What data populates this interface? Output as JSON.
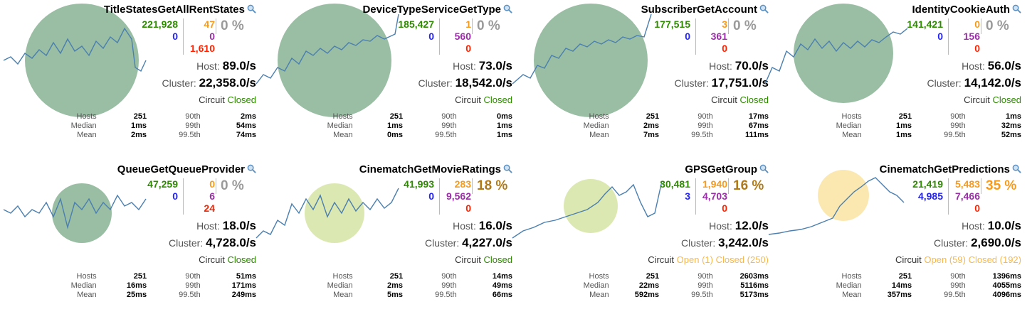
{
  "colors": {
    "green": "#2e8b00",
    "blue": "#2222ff",
    "purple": "#9b2ea8",
    "red": "#ff2200",
    "orange": "#f89a1a",
    "line": "#4a7fb0",
    "circleGreen": "#8fb79a",
    "circleLime": "#d8e6a8",
    "circleYellow": "#fbe6a8"
  },
  "cards": [
    {
      "name": "TitleStatesGetAllRentStates",
      "success": "221,928",
      "timeout": "0",
      "thread": "47",
      "sem": "0",
      "failure": "1,610",
      "err": "0 %",
      "errClass": "gray",
      "host": "89.0/s",
      "cluster": "22,358.0/s",
      "circuit": "Circuit",
      "circuitState": "Closed",
      "circuitClass": "cgreen",
      "hosts": "251",
      "median": "1ms",
      "mean": "2ms",
      "p90": "2ms",
      "p99": "54ms",
      "p995": "74ms",
      "circleColor": "#8fb79a"
    },
    {
      "name": "DeviceTypeServiceGetType",
      "success": "185,427",
      "timeout": "0",
      "thread": "1",
      "sem": "560",
      "failure": "0",
      "err": "0 %",
      "errClass": "gray",
      "host": "73.0/s",
      "cluster": "18,542.0/s",
      "circuit": "Circuit",
      "circuitState": "Closed",
      "circuitClass": "cgreen",
      "hosts": "251",
      "median": "1ms",
      "mean": "0ms",
      "p90": "0ms",
      "p99": "1ms",
      "p995": "1ms",
      "circleColor": "#8fb79a"
    },
    {
      "name": "SubscriberGetAccount",
      "success": "177,515",
      "timeout": "0",
      "thread": "3",
      "sem": "361",
      "failure": "0",
      "err": "0 %",
      "errClass": "gray",
      "host": "70.0/s",
      "cluster": "17,751.0/s",
      "circuit": "Circuit",
      "circuitState": "Closed",
      "circuitClass": "cgreen",
      "hosts": "251",
      "median": "2ms",
      "mean": "7ms",
      "p90": "17ms",
      "p99": "67ms",
      "p995": "111ms",
      "circleColor": "#8fb79a"
    },
    {
      "name": "IdentityCookieAuth",
      "success": "141,421",
      "timeout": "0",
      "thread": "0",
      "sem": "156",
      "failure": "0",
      "err": "0 %",
      "errClass": "gray",
      "host": "56.0/s",
      "cluster": "14,142.0/s",
      "circuit": "Circuit",
      "circuitState": "Closed",
      "circuitClass": "cgreen",
      "hosts": "251",
      "median": "1ms",
      "mean": "1ms",
      "p90": "1ms",
      "p99": "32ms",
      "p995": "52ms",
      "circleColor": "#8fb79a"
    },
    {
      "name": "QueueGetQueueProvider",
      "success": "47,259",
      "timeout": "0",
      "thread": "0",
      "sem": "6",
      "failure": "24",
      "err": "0 %",
      "errClass": "gray",
      "host": "18.0/s",
      "cluster": "4,728.0/s",
      "circuit": "Circuit",
      "circuitState": "Closed",
      "circuitClass": "cgreen",
      "hosts": "251",
      "median": "16ms",
      "mean": "25ms",
      "p90": "51ms",
      "p99": "171ms",
      "p995": "249ms",
      "circleColor": "#8fb79a"
    },
    {
      "name": "CinematchGetMovieRatings",
      "success": "41,993",
      "timeout": "0",
      "thread": "283",
      "sem": "9,562",
      "failure": "0",
      "err": "18 %",
      "errClass": "brown",
      "host": "16.0/s",
      "cluster": "4,227.0/s",
      "circuit": "Circuit",
      "circuitState": "Closed",
      "circuitClass": "cgreen",
      "hosts": "251",
      "median": "2ms",
      "mean": "5ms",
      "p90": "14ms",
      "p99": "49ms",
      "p995": "66ms",
      "circleColor": "#d8e6a8"
    },
    {
      "name": "GPSGetGroup",
      "success": "30,481",
      "timeout": "3",
      "thread": "1,940",
      "sem": "4,703",
      "failure": "0",
      "err": "16 %",
      "errClass": "brown",
      "host": "12.0/s",
      "cluster": "3,242.0/s",
      "circuit": "Circuit",
      "circuitState": "Open (1) Closed (250)",
      "circuitClass": "corange",
      "hosts": "251",
      "median": "22ms",
      "mean": "592ms",
      "p90": "2603ms",
      "p99": "5116ms",
      "p995": "5173ms",
      "circleColor": "#d8e6a8"
    },
    {
      "name": "CinematchGetPredictions",
      "success": "21,419",
      "timeout": "4,985",
      "thread": "5,483",
      "sem": "7,466",
      "failure": "0",
      "err": "35 %",
      "errClass": "orange",
      "host": "10.0/s",
      "cluster": "2,690.0/s",
      "circuit": "Circuit",
      "circuitState": "Open (59) Closed (192)",
      "circuitClass": "corange",
      "hosts": "251",
      "median": "14ms",
      "mean": "357ms",
      "p90": "1396ms",
      "p99": "4055ms",
      "p995": "4096ms",
      "circleColor": "#fbe6a8"
    }
  ],
  "labels": {
    "host": "Host:",
    "cluster": "Cluster:",
    "hosts": "Hosts",
    "median": "Median",
    "mean": "Mean",
    "p90": "90th",
    "p99": "99th",
    "p995": "99.5th"
  },
  "icons": {
    "search": "magnifier-icon"
  }
}
